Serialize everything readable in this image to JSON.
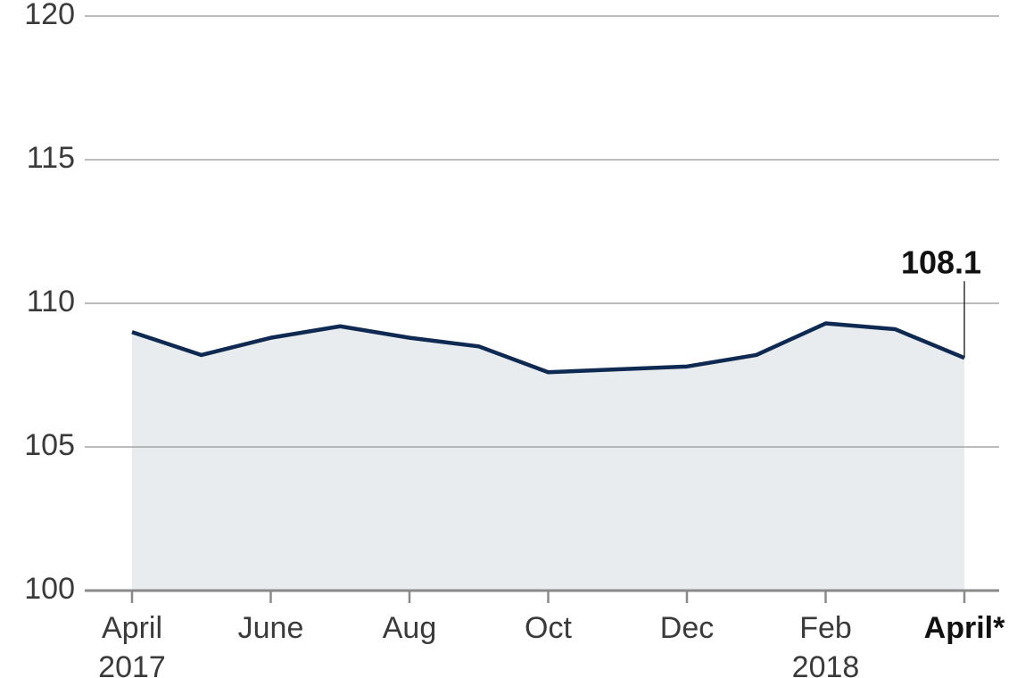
{
  "chart_data": {
    "type": "line",
    "categories": [
      "April",
      null,
      "June",
      null,
      "Aug",
      null,
      "Oct",
      null,
      "Dec",
      null,
      "Feb",
      null,
      "April*"
    ],
    "category_sublabels": [
      "2017",
      null,
      null,
      null,
      null,
      null,
      null,
      null,
      null,
      null,
      "2018",
      null,
      null
    ],
    "series": [
      {
        "color": "#0f2a52",
        "values": [
          109.0,
          108.2,
          108.8,
          109.2,
          108.8,
          108.5,
          107.6,
          107.7,
          107.8,
          108.2,
          109.3,
          109.1,
          108.1
        ]
      }
    ],
    "ylim": [
      100,
      120
    ],
    "yticks": [
      100,
      105,
      110,
      115,
      120
    ],
    "grid": true,
    "area_color": "#e8ecef"
  }
}
